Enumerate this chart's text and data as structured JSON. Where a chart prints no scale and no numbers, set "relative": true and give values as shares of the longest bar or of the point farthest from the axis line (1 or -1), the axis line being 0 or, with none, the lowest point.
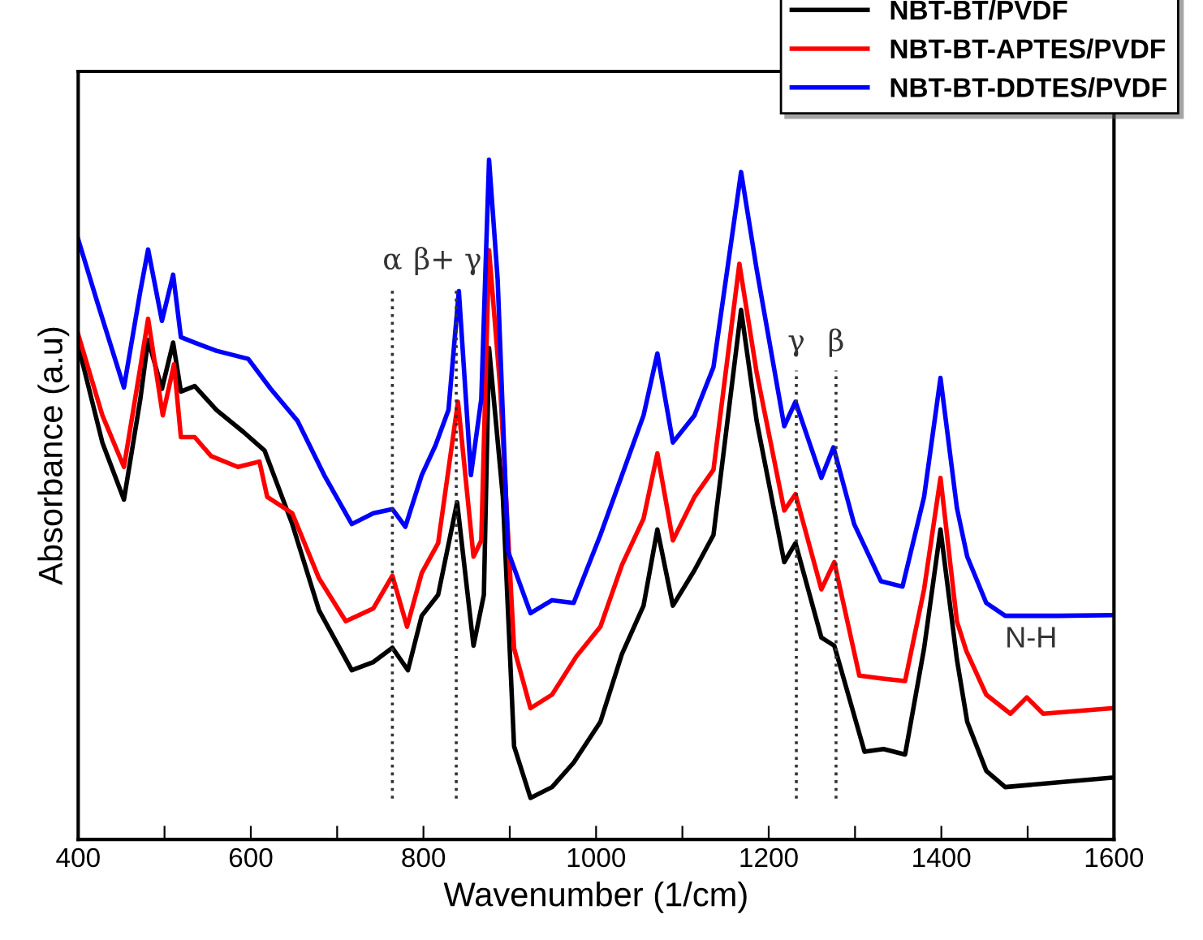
{
  "chart_data": {
    "type": "line",
    "relative": true,
    "xlabel": "Wavenumber (1/cm)",
    "ylabel": "Absorbance (a.u)",
    "xlim": [
      400,
      1600
    ],
    "xticks": [
      400,
      {
        "value": 500,
        "label": null
      },
      600,
      {
        "value": 700,
        "label": null
      },
      800,
      {
        "value": 900,
        "label": null
      },
      1000,
      {
        "value": 1100,
        "label": null
      },
      1200,
      {
        "value": 1300,
        "label": null
      },
      1400,
      {
        "value": 1500,
        "label": null
      },
      1600
    ],
    "tick_labels": "x",
    "grid": false,
    "legend": "top right",
    "line_style": "solid",
    "marker": "none",
    "series": [
      {
        "name": "NBT-BT/PVDF",
        "color": "#000000",
        "x": [
          400,
          428,
          453,
          472,
          481,
          497,
          510,
          519,
          535,
          560,
          591,
          616,
          648,
          679,
          717,
          742,
          764,
          782,
          798,
          817,
          839,
          858,
          870,
          876,
          892,
          905,
          924,
          949,
          974,
          1005,
          1030,
          1055,
          1071,
          1089,
          1114,
          1136,
          1168,
          1186,
          1218,
          1231,
          1261,
          1276,
          1311,
          1333,
          1358,
          1380,
          1399,
          1418,
          1430,
          1452,
          1474,
          1598
        ],
        "values": [
          0.727,
          0.584,
          0.5,
          0.648,
          0.735,
          0.663,
          0.731,
          0.659,
          0.667,
          0.632,
          0.6,
          0.572,
          0.464,
          0.337,
          0.249,
          0.261,
          0.282,
          0.249,
          0.329,
          0.36,
          0.496,
          0.285,
          0.36,
          0.723,
          0.504,
          0.137,
          0.061,
          0.077,
          0.113,
          0.173,
          0.273,
          0.344,
          0.456,
          0.344,
          0.396,
          0.448,
          0.779,
          0.616,
          0.408,
          0.436,
          0.297,
          0.285,
          0.129,
          0.133,
          0.125,
          0.281,
          0.456,
          0.265,
          0.173,
          0.101,
          0.077,
          0.091
        ]
      },
      {
        "name": "NBT-BT-APTES/PVDF",
        "color": "#ff0000",
        "x": [
          400,
          428,
          453,
          472,
          481,
          498,
          511,
          519,
          535,
          554,
          585,
          610,
          619,
          648,
          679,
          710,
          742,
          764,
          781,
          798,
          817,
          840,
          858,
          867,
          876,
          889,
          905,
          924,
          949,
          977,
          1005,
          1030,
          1055,
          1071,
          1089,
          1114,
          1136,
          1166,
          1186,
          1218,
          1231,
          1261,
          1276,
          1305,
          1330,
          1358,
          1380,
          1399,
          1418,
          1429,
          1452,
          1480,
          1499,
          1518,
          1598
        ],
        "values": [
          0.743,
          0.624,
          0.548,
          0.695,
          0.766,
          0.624,
          0.699,
          0.592,
          0.592,
          0.564,
          0.548,
          0.556,
          0.504,
          0.48,
          0.384,
          0.321,
          0.34,
          0.388,
          0.313,
          0.392,
          0.436,
          0.644,
          0.416,
          0.44,
          0.867,
          0.663,
          0.281,
          0.193,
          0.213,
          0.269,
          0.313,
          0.404,
          0.472,
          0.568,
          0.44,
          0.504,
          0.544,
          0.847,
          0.687,
          0.484,
          0.508,
          0.368,
          0.408,
          0.241,
          0.237,
          0.233,
          0.368,
          0.532,
          0.321,
          0.277,
          0.213,
          0.185,
          0.209,
          0.185,
          0.193
        ]
      },
      {
        "name": "NBT-BT-DDTES/PVDF",
        "color": "#0000ff",
        "x": [
          400,
          422,
          453,
          472,
          481,
          497,
          510,
          519,
          535,
          560,
          597,
          623,
          654,
          685,
          717,
          742,
          764,
          779,
          798,
          814,
          829,
          841,
          855,
          867,
          876,
          886,
          898,
          924,
          949,
          974,
          1005,
          1030,
          1055,
          1071,
          1089,
          1114,
          1136,
          1168,
          1186,
          1218,
          1231,
          1261,
          1275,
          1299,
          1330,
          1355,
          1380,
          1399,
          1418,
          1430,
          1452,
          1474,
          1536,
          1598
        ],
        "values": [
          0.883,
          0.791,
          0.665,
          0.807,
          0.868,
          0.763,
          0.831,
          0.739,
          0.731,
          0.719,
          0.707,
          0.663,
          0.616,
          0.536,
          0.464,
          0.48,
          0.486,
          0.46,
          0.536,
          0.58,
          0.632,
          0.807,
          0.536,
          0.648,
          1.0,
          0.823,
          0.424,
          0.333,
          0.352,
          0.348,
          0.448,
          0.536,
          0.624,
          0.715,
          0.584,
          0.624,
          0.695,
          0.982,
          0.839,
          0.608,
          0.644,
          0.532,
          0.577,
          0.464,
          0.38,
          0.372,
          0.504,
          0.679,
          0.488,
          0.416,
          0.348,
          0.329,
          0.329,
          0.33
        ]
      }
    ],
    "ref_lines": [
      {
        "axis": "x",
        "value": 764,
        "label": "α",
        "color": "#333333",
        "line_style": "dotted"
      },
      {
        "axis": "x",
        "value": 838,
        "label": "β+ γ",
        "color": "#333333",
        "line_style": "dotted"
      },
      {
        "axis": "x",
        "value": 1232,
        "label": "γ",
        "color": "#333333",
        "line_style": "dotted"
      },
      {
        "axis": "x",
        "value": 1278,
        "label": "β",
        "color": "#333333",
        "line_style": "dotted"
      }
    ],
    "annotations": [
      "N-H"
    ]
  }
}
